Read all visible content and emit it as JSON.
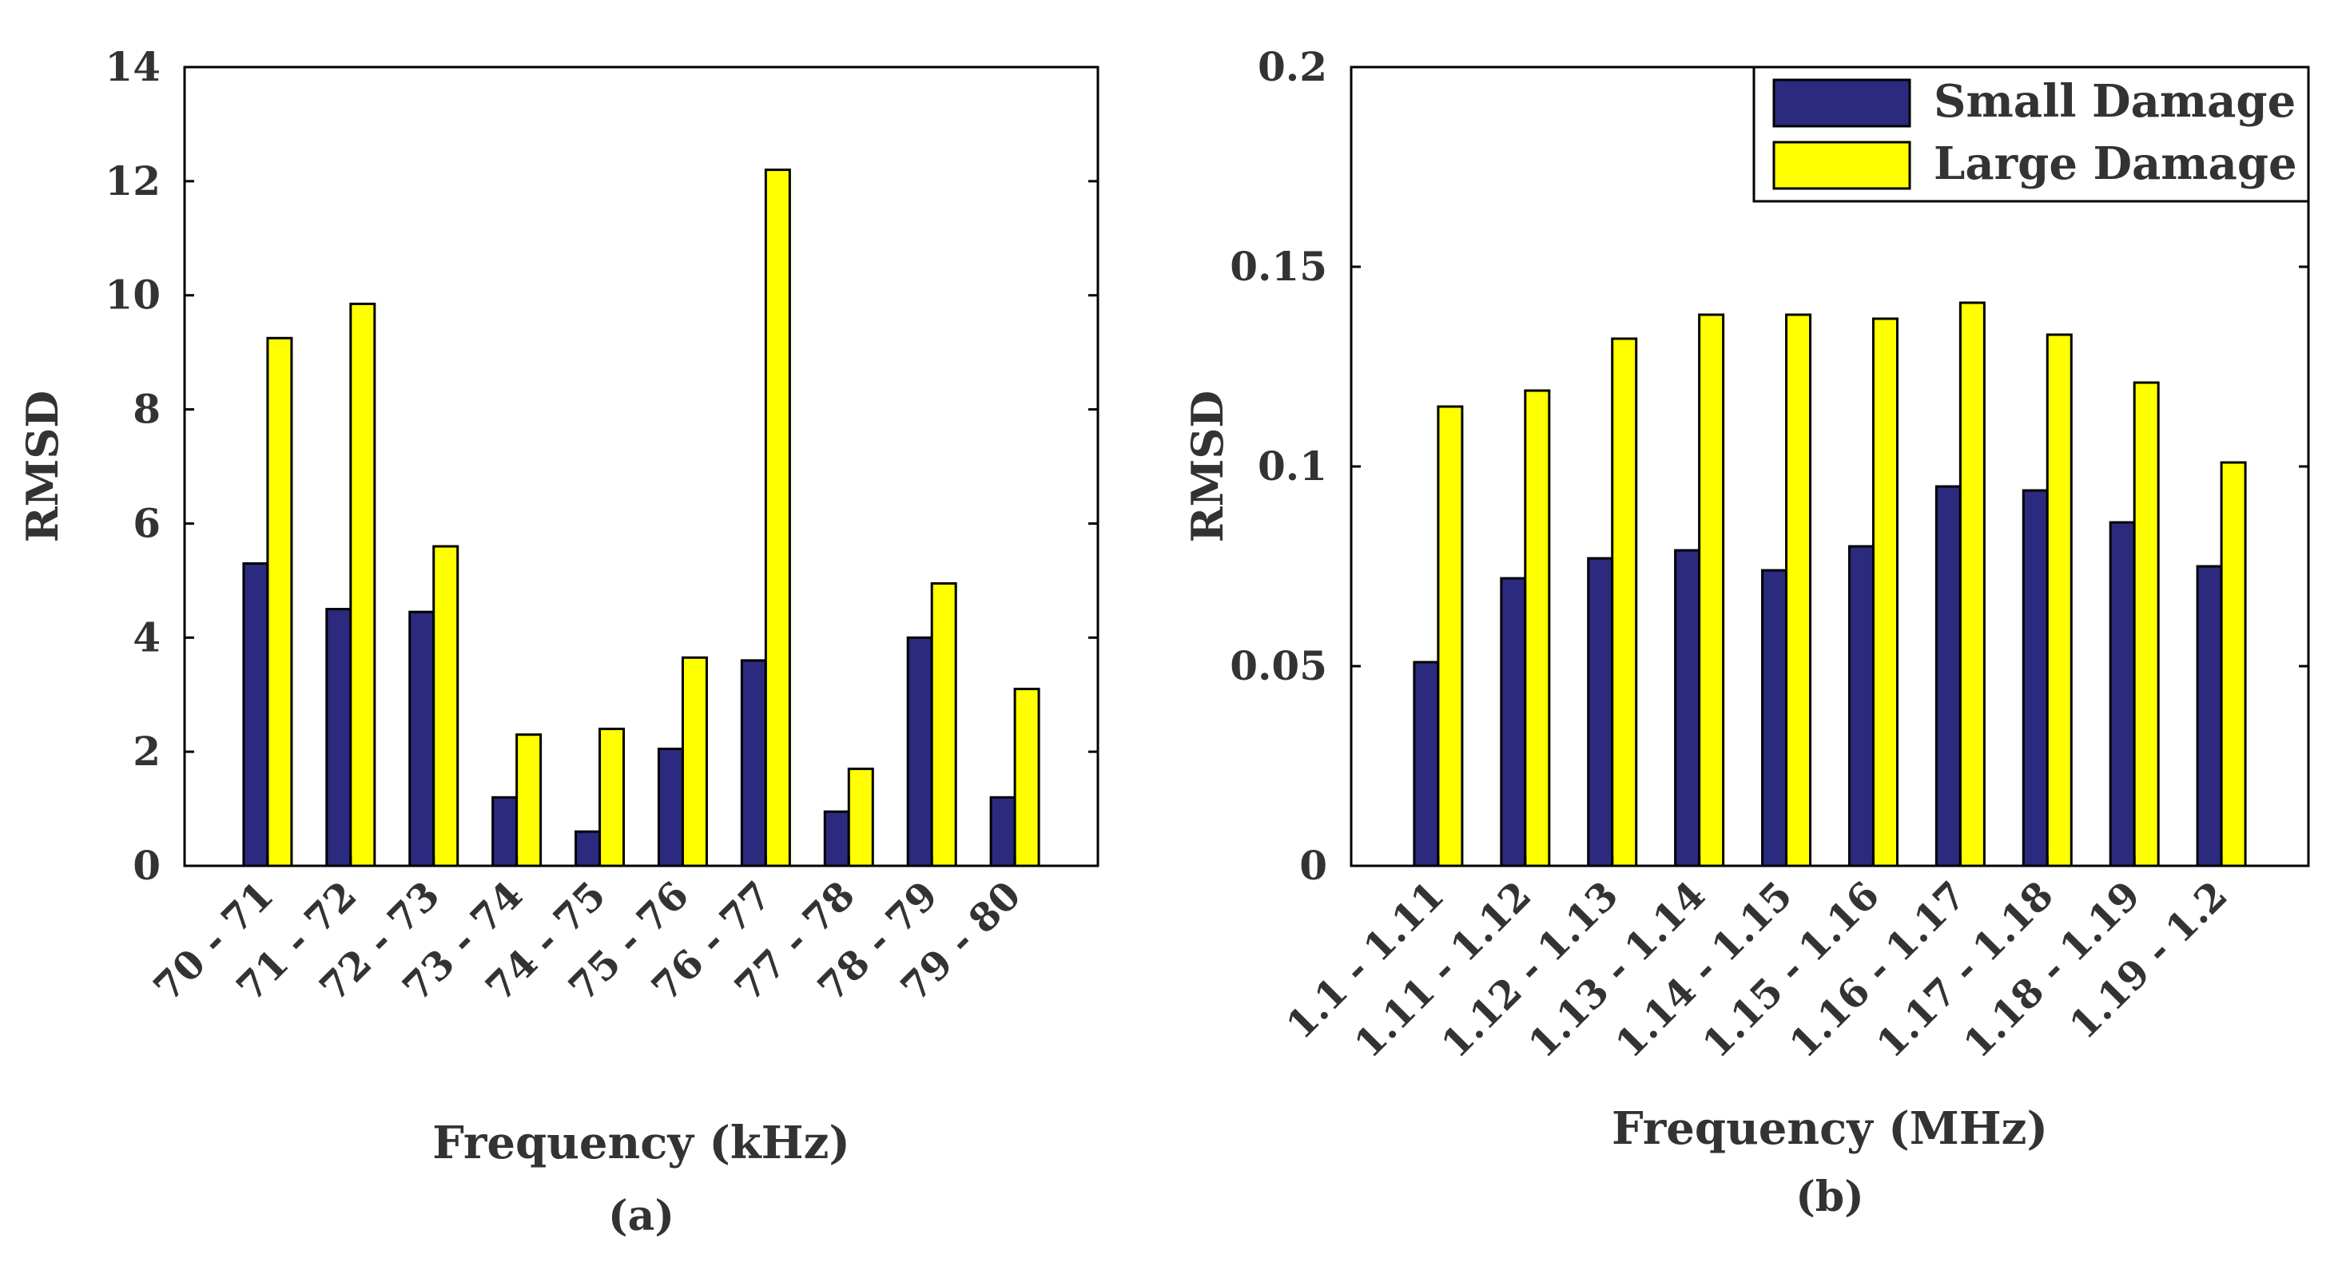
{
  "chart_data": [
    {
      "type": "bar",
      "panel_label": "(a)",
      "xlabel": "Frequency (kHz)",
      "ylabel": "RMSD",
      "ylim": [
        0,
        14
      ],
      "yticks": [
        "0",
        "2",
        "4",
        "6",
        "8",
        "10",
        "12",
        "14"
      ],
      "categories": [
        "70 - 71",
        "71 - 72",
        "72 - 73",
        "73 - 74",
        "74 - 75",
        "75 - 76",
        "76 - 77",
        "77 - 78",
        "78 - 79",
        "79 - 80"
      ],
      "series": [
        {
          "name": "Small Damage",
          "color": "#2b2a7e",
          "values": [
            5.3,
            4.5,
            4.45,
            1.2,
            0.6,
            2.05,
            3.6,
            0.95,
            4.0,
            1.2
          ]
        },
        {
          "name": "Large Damage",
          "color": "#ffff00",
          "values": [
            9.25,
            9.85,
            5.6,
            2.3,
            2.4,
            3.65,
            12.2,
            1.7,
            4.95,
            3.1
          ]
        }
      ],
      "legend": null,
      "grid": false
    },
    {
      "type": "bar",
      "panel_label": "(b)",
      "xlabel": "Frequency (MHz)",
      "ylabel": "RMSD",
      "ylim": [
        0,
        0.2
      ],
      "yticks": [
        "0",
        "0.05",
        "0.1",
        "0.15",
        "0.2"
      ],
      "categories": [
        "1.1 - 1.11",
        "1.11 - 1.12",
        "1.12 - 1.13",
        "1.13 - 1.14",
        "1.14 - 1.15",
        "1.15 - 1.16",
        "1.16 - 1.17",
        "1.17 - 1.18",
        "1.18 - 1.19",
        "1.19 - 1.2"
      ],
      "series": [
        {
          "name": "Small Damage",
          "color": "#2b2a7e",
          "values": [
            0.051,
            0.072,
            0.077,
            0.079,
            0.074,
            0.08,
            0.095,
            0.094,
            0.086,
            0.075
          ]
        },
        {
          "name": "Large Damage",
          "color": "#ffff00",
          "values": [
            0.115,
            0.119,
            0.132,
            0.138,
            0.138,
            0.137,
            0.141,
            0.133,
            0.121,
            0.101
          ]
        }
      ],
      "legend": "top-right",
      "grid": false
    }
  ]
}
